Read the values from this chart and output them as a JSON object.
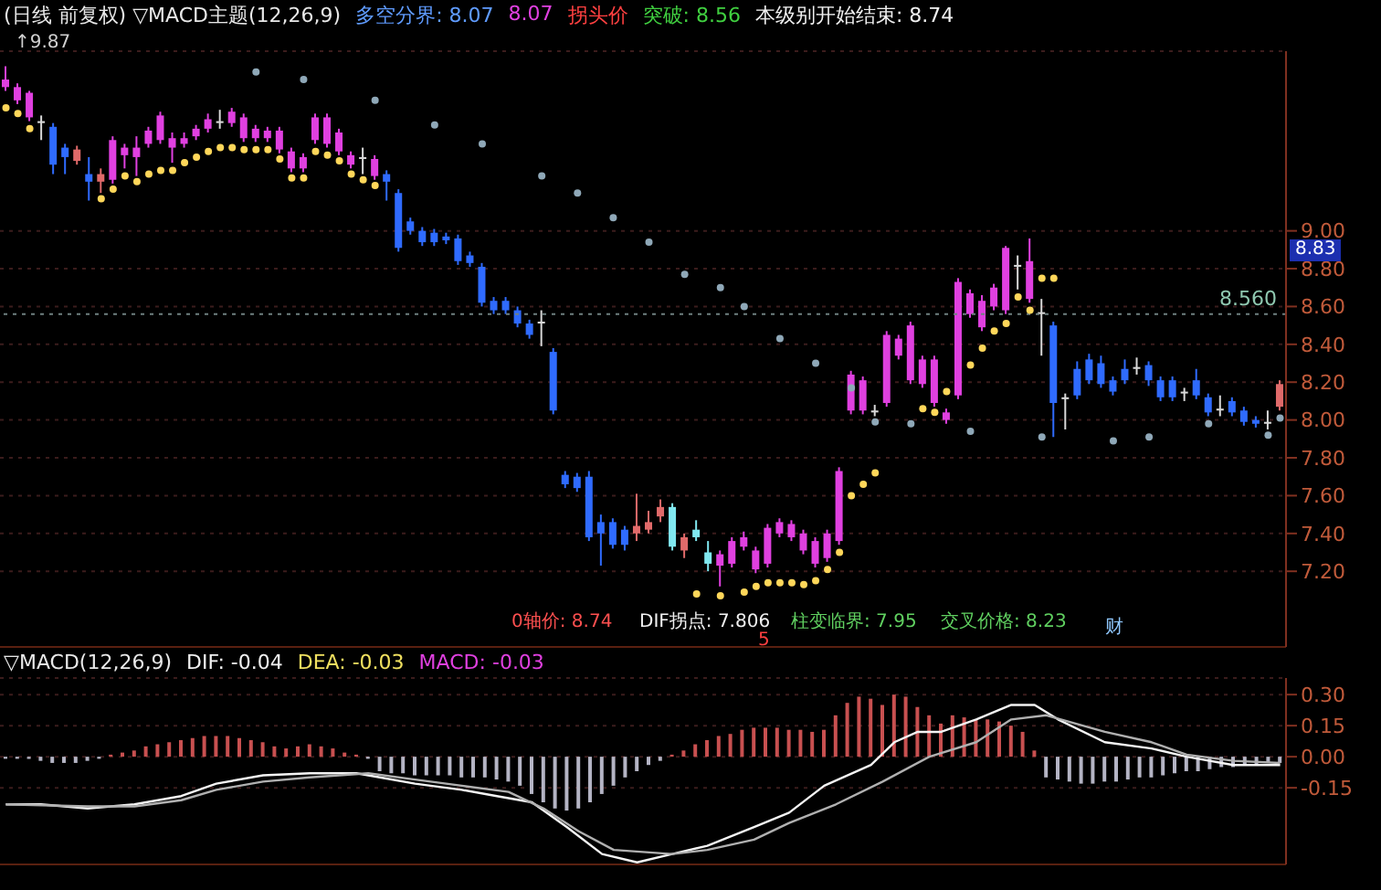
{
  "chart_data": [
    {
      "type": "candlestick",
      "title": "(日线 前复权) ▽MACD主题(12,26,9)",
      "categories": [
        null,
        null,
        null,
        null,
        null,
        null,
        null,
        null,
        null,
        null,
        null,
        null,
        null,
        null,
        null,
        null,
        null,
        null,
        null,
        null,
        null,
        null,
        null,
        null,
        null,
        null,
        null,
        null,
        null,
        null,
        null,
        null,
        null,
        null,
        null,
        null,
        null,
        null,
        null,
        null,
        null,
        null,
        null,
        null,
        null,
        null,
        null,
        null,
        null,
        null,
        null,
        null,
        null,
        null,
        null,
        null,
        null,
        null,
        null,
        null,
        null,
        null,
        null,
        null,
        null,
        null,
        null,
        null,
        null,
        null,
        null,
        null,
        null,
        null,
        null,
        null,
        null,
        null,
        null,
        null,
        null,
        null,
        null,
        null,
        null,
        null,
        null,
        null,
        null,
        null,
        null,
        null,
        null,
        null,
        null,
        null,
        null,
        null,
        null,
        null,
        null,
        null,
        null,
        null,
        null,
        null,
        null,
        null
      ],
      "ohlc": [
        [
          9.76,
          9.87,
          9.74,
          9.8
        ],
        [
          9.69,
          9.78,
          9.67,
          9.76
        ],
        [
          9.6,
          9.74,
          9.58,
          9.73
        ],
        [
          9.57,
          9.61,
          9.48,
          9.58
        ],
        [
          9.55,
          9.57,
          9.3,
          9.35
        ],
        [
          9.44,
          9.46,
          9.3,
          9.39
        ],
        [
          9.37,
          9.45,
          9.35,
          9.43
        ],
        [
          9.3,
          9.39,
          9.16,
          9.26
        ],
        [
          9.26,
          9.33,
          9.2,
          9.3
        ],
        [
          9.27,
          9.5,
          9.25,
          9.48
        ],
        [
          9.4,
          9.46,
          9.33,
          9.44
        ],
        [
          9.39,
          9.5,
          9.29,
          9.44
        ],
        [
          9.46,
          9.55,
          9.44,
          9.53
        ],
        [
          9.48,
          9.63,
          9.46,
          9.61
        ],
        [
          9.44,
          9.52,
          9.36,
          9.49
        ],
        [
          9.46,
          9.52,
          9.44,
          9.49
        ],
        [
          9.5,
          9.56,
          9.48,
          9.54
        ],
        [
          9.54,
          9.62,
          9.52,
          9.59
        ],
        [
          9.57,
          9.64,
          9.54,
          9.58
        ],
        [
          9.57,
          9.65,
          9.55,
          9.63
        ],
        [
          9.49,
          9.62,
          9.47,
          9.6
        ],
        [
          9.49,
          9.56,
          9.47,
          9.54
        ],
        [
          9.49,
          9.55,
          9.47,
          9.53
        ],
        [
          9.43,
          9.55,
          9.41,
          9.53
        ],
        [
          9.33,
          9.44,
          9.31,
          9.42
        ],
        [
          9.33,
          9.41,
          9.31,
          9.39
        ],
        [
          9.48,
          9.62,
          9.46,
          9.6
        ],
        [
          9.46,
          9.62,
          9.44,
          9.6
        ],
        [
          9.42,
          9.54,
          9.4,
          9.52
        ],
        [
          9.35,
          9.42,
          9.33,
          9.4
        ],
        [
          9.38,
          9.44,
          9.3,
          9.39
        ],
        [
          9.29,
          9.4,
          9.27,
          9.38
        ],
        [
          9.3,
          9.32,
          9.16,
          9.26
        ],
        [
          9.2,
          9.22,
          8.89,
          8.91
        ],
        [
          9.05,
          9.07,
          8.98,
          9.0
        ],
        [
          9.0,
          9.02,
          8.92,
          8.94
        ],
        [
          8.99,
          9.01,
          8.92,
          8.94
        ],
        [
          8.97,
          8.99,
          8.93,
          8.95
        ],
        [
          8.96,
          8.98,
          8.82,
          8.84
        ],
        [
          8.87,
          8.89,
          8.81,
          8.83
        ],
        [
          8.81,
          8.83,
          8.6,
          8.62
        ],
        [
          8.63,
          8.65,
          8.56,
          8.58
        ],
        [
          8.63,
          8.65,
          8.56,
          8.58
        ],
        [
          8.58,
          8.6,
          8.49,
          8.51
        ],
        [
          8.51,
          8.53,
          8.43,
          8.45
        ],
        [
          8.51,
          8.58,
          8.39,
          8.52
        ],
        [
          8.36,
          8.38,
          8.03,
          8.05
        ],
        [
          7.71,
          7.73,
          7.64,
          7.66
        ],
        [
          7.7,
          7.72,
          7.62,
          7.64
        ],
        [
          7.7,
          7.73,
          7.36,
          7.38
        ],
        [
          7.46,
          7.5,
          7.23,
          7.4
        ],
        [
          7.46,
          7.48,
          7.32,
          7.34
        ],
        [
          7.42,
          7.44,
          7.31,
          7.34
        ],
        [
          7.4,
          7.61,
          7.36,
          7.44
        ],
        [
          7.42,
          7.52,
          7.4,
          7.46
        ],
        [
          7.49,
          7.58,
          7.46,
          7.54
        ],
        [
          7.54,
          7.56,
          7.31,
          7.33
        ],
        [
          7.31,
          7.4,
          7.27,
          7.38
        ],
        [
          7.42,
          7.47,
          7.36,
          7.38
        ],
        [
          7.3,
          7.36,
          7.2,
          7.24
        ],
        [
          7.23,
          7.31,
          7.12,
          7.29
        ],
        [
          7.24,
          7.38,
          7.22,
          7.36
        ],
        [
          7.33,
          7.41,
          7.31,
          7.38
        ],
        [
          7.21,
          7.33,
          7.19,
          7.31
        ],
        [
          7.24,
          7.45,
          7.22,
          7.43
        ],
        [
          7.4,
          7.48,
          7.38,
          7.46
        ],
        [
          7.38,
          7.47,
          7.36,
          7.45
        ],
        [
          7.31,
          7.42,
          7.29,
          7.4
        ],
        [
          7.24,
          7.38,
          7.22,
          7.36
        ],
        [
          7.27,
          7.42,
          7.25,
          7.4
        ],
        [
          7.36,
          7.75,
          7.34,
          7.73
        ],
        [
          8.05,
          8.26,
          8.03,
          8.24
        ],
        [
          8.05,
          8.23,
          8.03,
          8.21
        ],
        [
          8.04,
          8.08,
          8.02,
          8.05
        ],
        [
          8.09,
          8.47,
          8.07,
          8.45
        ],
        [
          8.34,
          8.45,
          8.32,
          8.43
        ],
        [
          8.21,
          8.52,
          8.19,
          8.5
        ],
        [
          8.19,
          8.34,
          8.17,
          8.32
        ],
        [
          8.09,
          8.34,
          8.07,
          8.32
        ],
        [
          8.0,
          8.06,
          7.98,
          8.04
        ],
        [
          8.13,
          8.75,
          8.11,
          8.73
        ],
        [
          8.56,
          8.69,
          8.54,
          8.67
        ],
        [
          8.49,
          8.66,
          8.47,
          8.63
        ],
        [
          8.6,
          8.72,
          8.58,
          8.7
        ],
        [
          8.58,
          8.92,
          8.56,
          8.91
        ],
        [
          8.81,
          8.87,
          8.69,
          8.82
        ],
        [
          8.64,
          8.96,
          8.62,
          8.84
        ],
        [
          8.56,
          8.64,
          8.34,
          8.57
        ],
        [
          8.5,
          8.52,
          7.91,
          8.09
        ],
        [
          8.11,
          8.14,
          7.95,
          8.12
        ],
        [
          8.27,
          8.31,
          8.11,
          8.13
        ],
        [
          8.32,
          8.35,
          8.19,
          8.21
        ],
        [
          8.3,
          8.34,
          8.17,
          8.19
        ],
        [
          8.21,
          8.23,
          8.13,
          8.15
        ],
        [
          8.27,
          8.32,
          8.19,
          8.21
        ],
        [
          8.27,
          8.33,
          8.24,
          8.28
        ],
        [
          8.29,
          8.31,
          8.18,
          8.21
        ],
        [
          8.21,
          8.23,
          8.1,
          8.12
        ],
        [
          8.21,
          8.23,
          8.1,
          8.12
        ],
        [
          8.14,
          8.17,
          8.1,
          8.15
        ],
        [
          8.21,
          8.27,
          8.11,
          8.13
        ],
        [
          8.12,
          8.14,
          8.02,
          8.04
        ],
        [
          8.05,
          8.13,
          8.02,
          8.06
        ],
        [
          8.1,
          8.12,
          8.02,
          8.04
        ],
        [
          8.05,
          8.07,
          7.97,
          7.99
        ],
        [
          8.0,
          8.02,
          7.96,
          7.98
        ],
        [
          7.98,
          8.05,
          7.95,
          7.99
        ],
        [
          8.07,
          8.21,
          8.05,
          8.19
        ]
      ],
      "colors": [
        "#e040e0",
        "#e040e0",
        "#e040e0",
        "#d8d8d8",
        "#2f6bff",
        "#2f6bff",
        "#e06a6a",
        "#2f6bff",
        "#e06a6a",
        "#e040e0",
        "#e040e0",
        "#e040e0",
        "#e040e0",
        "#e040e0",
        "#e040e0",
        "#e040e0",
        "#e040e0",
        "#e040e0",
        "#d8d8d8",
        "#e040e0",
        "#e040e0",
        "#e040e0",
        "#e040e0",
        "#e040e0",
        "#e040e0",
        "#e040e0",
        "#e040e0",
        "#e040e0",
        "#e040e0",
        "#e040e0",
        "#d8d8d8",
        "#e040e0",
        "#2f6bff",
        "#2f6bff",
        "#2f6bff",
        "#2f6bff",
        "#2f6bff",
        "#2f6bff",
        "#2f6bff",
        "#2f6bff",
        "#2f6bff",
        "#2f6bff",
        "#2f6bff",
        "#2f6bff",
        "#2f6bff",
        "#d8d8d8",
        "#2f6bff",
        "#2f6bff",
        "#2f6bff",
        "#2f6bff",
        "#2f6bff",
        "#2f6bff",
        "#2f6bff",
        "#e06a6a",
        "#e06a6a",
        "#e06a6a",
        "#80e8f0",
        "#e06a6a",
        "#80e8f0",
        "#80e8f0",
        "#e040e0",
        "#e040e0",
        "#e040e0",
        "#e040e0",
        "#e040e0",
        "#e040e0",
        "#e040e0",
        "#e040e0",
        "#e040e0",
        "#e040e0",
        "#e040e0",
        "#e040e0",
        "#e040e0",
        "#d8d8d8",
        "#e040e0",
        "#e040e0",
        "#e040e0",
        "#e040e0",
        "#e040e0",
        "#e040e0",
        "#e040e0",
        "#e040e0",
        "#e040e0",
        "#e040e0",
        "#e040e0",
        "#d8d8d8",
        "#e040e0",
        "#d8d8d8",
        "#2f6bff",
        "#d8d8d8",
        "#2f6bff",
        "#2f6bff",
        "#2f6bff",
        "#2f6bff",
        "#2f6bff",
        "#d8d8d8",
        "#2f6bff",
        "#2f6bff",
        "#2f6bff",
        "#d8d8d8",
        "#2f6bff",
        "#2f6bff",
        "#d8d8d8",
        "#2f6bff",
        "#2f6bff",
        "#2f6bff",
        "#d8d8d8",
        "#e06a6a"
      ],
      "series": [
        {
          "type": "scatter",
          "color": "#ffd75a",
          "values": [
            9.65,
            9.62,
            9.54,
            null,
            null,
            null,
            null,
            null,
            9.17,
            9.22,
            9.29,
            9.26,
            9.3,
            9.32,
            9.32,
            9.36,
            9.39,
            9.42,
            9.44,
            9.44,
            9.43,
            9.43,
            9.43,
            9.38,
            9.28,
            9.28,
            9.42,
            9.4,
            9.37,
            9.3,
            9.27,
            9.24,
            null,
            null,
            null,
            null,
            null,
            null,
            null,
            null,
            null,
            null,
            null,
            null,
            null,
            null,
            null,
            null,
            null,
            null,
            null,
            null,
            null,
            null,
            null,
            null,
            null,
            null,
            7.08,
            null,
            7.07,
            null,
            7.09,
            7.12,
            7.14,
            7.14,
            7.14,
            7.13,
            7.15,
            7.21,
            7.3,
            7.6,
            7.66,
            7.72,
            null,
            null,
            null,
            8.06,
            8.04,
            8.15,
            null,
            8.29,
            8.38,
            8.47,
            8.51,
            8.65,
            8.58,
            8.75,
            8.75,
            null,
            null,
            null,
            null,
            null,
            null,
            null,
            null,
            null,
            null,
            null,
            null,
            null,
            null,
            null,
            null,
            null,
            null,
            null
          ]
        },
        {
          "type": "scatter",
          "color": "#8fa8b8",
          "values": [
            null,
            null,
            null,
            null,
            null,
            null,
            null,
            null,
            null,
            null,
            null,
            null,
            null,
            null,
            null,
            null,
            null,
            null,
            null,
            null,
            null,
            9.84,
            null,
            null,
            null,
            9.8,
            null,
            null,
            null,
            null,
            null,
            9.69,
            null,
            null,
            null,
            null,
            9.56,
            null,
            null,
            null,
            9.46,
            null,
            null,
            null,
            null,
            9.29,
            null,
            null,
            9.2,
            null,
            null,
            9.07,
            null,
            null,
            8.94,
            null,
            null,
            8.77,
            null,
            null,
            8.7,
            null,
            8.6,
            null,
            null,
            8.43,
            null,
            null,
            8.3,
            null,
            null,
            8.17,
            null,
            7.99,
            null,
            null,
            7.98,
            null,
            null,
            null,
            null,
            7.94,
            null,
            null,
            null,
            null,
            null,
            7.91,
            null,
            null,
            null,
            null,
            null,
            7.89,
            null,
            null,
            7.91,
            null,
            null,
            null,
            null,
            7.98,
            null,
            null,
            null,
            null,
            7.92,
            8.01
          ]
        }
      ],
      "ref_lines": [
        {
          "axis": "y",
          "value": 8.56,
          "label": "8.560",
          "color": "#6f8080",
          "line_style": "dotted"
        }
      ],
      "ylim": [
        6.8,
        9.95
      ],
      "yticks": [
        {
          "value": 7.2,
          "label": "7.20"
        },
        {
          "value": 7.4,
          "label": "7.40"
        },
        {
          "value": 7.6,
          "label": "7.60"
        },
        {
          "value": 7.8,
          "label": "7.80"
        },
        {
          "value": 8.0,
          "label": "8.00"
        },
        {
          "value": 8.2,
          "label": "8.20"
        },
        {
          "value": 8.4,
          "label": "8.40"
        },
        {
          "value": 8.6,
          "label": "8.60"
        },
        {
          "value": 8.8,
          "label": "8.80"
        },
        {
          "value": 9.0,
          "label": "9.00"
        }
      ],
      "tick_labels": "y",
      "grid": "y",
      "marker": "circle",
      "annotations": [
        "多空分界: 8.07",
        "8.07",
        "拐头价",
        "突破: 8.56",
        "本级别开始结束: 8.74",
        "↑9.87",
        "0轴价: 8.74",
        "DIF拐点: 7.806",
        "柱变临界: 7.95",
        "交叉价格: 8.23",
        "8.83",
        "财",
        "5"
      ]
    },
    {
      "type": "bar",
      "title": "▽MACD(12,26,9)",
      "categories": [
        null,
        null,
        null,
        null,
        null,
        null,
        null,
        null,
        null,
        null,
        null,
        null,
        null,
        null,
        null,
        null,
        null,
        null,
        null,
        null,
        null,
        null,
        null,
        null,
        null,
        null,
        null,
        null,
        null,
        null,
        null,
        null,
        null,
        null,
        null,
        null,
        null,
        null,
        null,
        null,
        null,
        null,
        null,
        null,
        null,
        null,
        null,
        null,
        null,
        null,
        null,
        null,
        null,
        null,
        null,
        null,
        null,
        null,
        null,
        null,
        null,
        null,
        null,
        null,
        null,
        null,
        null,
        null,
        null,
        null,
        null,
        null,
        null,
        null,
        null,
        null,
        null,
        null,
        null,
        null,
        null,
        null,
        null,
        null,
        null,
        null,
        null,
        null,
        null,
        null,
        null,
        null,
        null,
        null,
        null,
        null,
        null,
        null,
        null,
        null,
        null,
        null,
        null,
        null,
        null,
        null,
        null,
        null,
        null,
        null
      ],
      "values": [
        -0.01,
        -0.01,
        -0.01,
        -0.02,
        -0.03,
        -0.03,
        -0.03,
        -0.02,
        -0.01,
        0.01,
        0.02,
        0.03,
        0.05,
        0.06,
        0.07,
        0.08,
        0.09,
        0.1,
        0.1,
        0.1,
        0.09,
        0.08,
        0.07,
        0.05,
        0.04,
        0.05,
        0.06,
        0.05,
        0.04,
        0.02,
        0.01,
        -0.01,
        -0.07,
        -0.08,
        -0.08,
        -0.09,
        -0.09,
        -0.09,
        -0.09,
        -0.1,
        -0.1,
        -0.1,
        -0.11,
        -0.12,
        -0.14,
        -0.18,
        -0.22,
        -0.25,
        -0.26,
        -0.25,
        -0.22,
        -0.18,
        -0.14,
        -0.1,
        -0.07,
        -0.04,
        -0.02,
        0.01,
        0.03,
        0.06,
        0.08,
        0.1,
        0.11,
        0.13,
        0.14,
        0.14,
        0.14,
        0.13,
        0.13,
        0.12,
        0.13,
        0.2,
        0.26,
        0.29,
        0.28,
        0.25,
        0.3,
        0.29,
        0.24,
        0.2,
        0.16,
        0.2,
        0.19,
        0.18,
        0.18,
        0.17,
        0.15,
        0.12,
        0.03,
        -0.1,
        -0.11,
        -0.12,
        -0.13,
        -0.13,
        -0.12,
        -0.12,
        -0.11,
        -0.1,
        -0.1,
        -0.09,
        -0.08,
        -0.07,
        -0.07,
        -0.06,
        -0.05,
        -0.05,
        -0.04,
        -0.04,
        -0.03,
        -0.03
      ],
      "colors": [
        "#b4b4c4",
        "#b4b4c4",
        "#b4b4c4",
        "#b4b4c4",
        "#b4b4c4",
        "#b4b4c4",
        "#b4b4c4",
        "#b4b4c4",
        "#b4b4c4",
        "#c85050",
        "#c85050",
        "#c85050",
        "#c85050",
        "#c85050",
        "#c85050",
        "#c85050",
        "#c85050",
        "#c85050",
        "#c85050",
        "#c85050",
        "#c85050",
        "#c85050",
        "#c85050",
        "#c85050",
        "#c85050",
        "#c85050",
        "#c85050",
        "#c85050",
        "#c85050",
        "#c85050",
        "#c85050",
        "#b4b4c4",
        "#b4b4c4",
        "#b4b4c4",
        "#b4b4c4",
        "#b4b4c4",
        "#b4b4c4",
        "#b4b4c4",
        "#b4b4c4",
        "#b4b4c4",
        "#b4b4c4",
        "#b4b4c4",
        "#b4b4c4",
        "#b4b4c4",
        "#b4b4c4",
        "#b4b4c4",
        "#b4b4c4",
        "#b4b4c4",
        "#b4b4c4",
        "#b4b4c4",
        "#b4b4c4",
        "#b4b4c4",
        "#b4b4c4",
        "#b4b4c4",
        "#b4b4c4",
        "#b4b4c4",
        "#b4b4c4",
        "#c85050",
        "#c85050",
        "#c85050",
        "#c85050",
        "#c85050",
        "#c85050",
        "#c85050",
        "#c85050",
        "#c85050",
        "#c85050",
        "#c85050",
        "#c85050",
        "#c85050",
        "#c85050",
        "#c85050",
        "#c85050",
        "#c85050",
        "#c85050",
        "#c85050",
        "#c85050",
        "#c85050",
        "#c85050",
        "#c85050",
        "#c85050",
        "#c85050",
        "#c85050",
        "#c85050",
        "#c85050",
        "#c85050",
        "#c85050",
        "#c85050",
        "#c85050",
        "#b4b4c4",
        "#b4b4c4",
        "#b4b4c4",
        "#b4b4c4",
        "#b4b4c4",
        "#b4b4c4",
        "#b4b4c4",
        "#b4b4c4",
        "#b4b4c4",
        "#b4b4c4",
        "#b4b4c4",
        "#b4b4c4",
        "#b4b4c4",
        "#b4b4c4",
        "#b4b4c4",
        "#b4b4c4",
        "#b4b4c4",
        "#b4b4c4",
        "#b4b4c4",
        "#b4b4c4",
        "#b4b4c4"
      ],
      "series": [
        {
          "type": "line",
          "color": "#f4f4f4",
          "values": [
            -0.23,
            null,
            null,
            -0.23,
            null,
            null,
            null,
            -0.25,
            null,
            null,
            null,
            -0.23,
            null,
            null,
            null,
            -0.19,
            null,
            null,
            -0.13,
            null,
            null,
            null,
            -0.09,
            null,
            null,
            null,
            -0.08,
            null,
            null,
            null,
            -0.08,
            null,
            -0.1,
            null,
            null,
            -0.13,
            null,
            null,
            null,
            -0.16,
            null,
            null,
            -0.19,
            null,
            null,
            -0.22,
            null,
            null,
            -0.34,
            null,
            null,
            -0.47,
            null,
            null,
            -0.51,
            null,
            null,
            -0.47,
            null,
            null,
            -0.43,
            null,
            null,
            null,
            -0.34,
            null,
            null,
            -0.27,
            null,
            null,
            -0.14,
            null,
            null,
            null,
            -0.04,
            null,
            0.07,
            null,
            0.12,
            null,
            0.12,
            null,
            null,
            0.18,
            null,
            null,
            0.25,
            null,
            0.25,
            null,
            0.18,
            null,
            null,
            null,
            0.07,
            null,
            null,
            null,
            0.04,
            null,
            null,
            0.0,
            null,
            null,
            null,
            -0.04,
            null,
            null,
            null,
            -0.04
          ]
        },
        {
          "type": "line",
          "color": "#b0b0b0",
          "values": [
            -0.23,
            null,
            null,
            null,
            null,
            null,
            null,
            -0.24,
            null,
            null,
            null,
            -0.24,
            null,
            null,
            null,
            -0.21,
            null,
            null,
            -0.16,
            null,
            null,
            null,
            -0.12,
            null,
            null,
            null,
            -0.1,
            null,
            null,
            null,
            null,
            -0.08,
            null,
            null,
            null,
            -0.11,
            null,
            null,
            null,
            -0.14,
            null,
            null,
            null,
            -0.17,
            null,
            null,
            -0.25,
            null,
            null,
            -0.36,
            null,
            null,
            -0.45,
            null,
            null,
            null,
            null,
            -0.47,
            null,
            null,
            -0.45,
            null,
            null,
            null,
            -0.4,
            null,
            null,
            -0.32,
            null,
            null,
            null,
            -0.23,
            null,
            null,
            null,
            -0.12,
            null,
            null,
            null,
            0.0,
            null,
            null,
            null,
            0.07,
            null,
            null,
            0.18,
            null,
            null,
            0.2,
            null,
            null,
            null,
            null,
            0.12,
            null,
            null,
            null,
            0.07,
            null,
            null,
            0.01,
            null,
            null,
            null,
            -0.02,
            null,
            null,
            null,
            -0.03
          ]
        }
      ],
      "ylim": [
        -0.52,
        0.38
      ],
      "yticks": [
        {
          "value": -0.15,
          "label": "-0.15"
        },
        {
          "value": 0,
          "label": "0.00"
        },
        {
          "value": 0.15,
          "label": "0.15"
        },
        {
          "value": 0.3,
          "label": "0.30"
        }
      ],
      "tick_labels": "y",
      "grid": "y",
      "annotations": [
        "DIF: -0.04",
        "DEA: -0.03",
        "MACD: -0.03"
      ]
    }
  ]
}
